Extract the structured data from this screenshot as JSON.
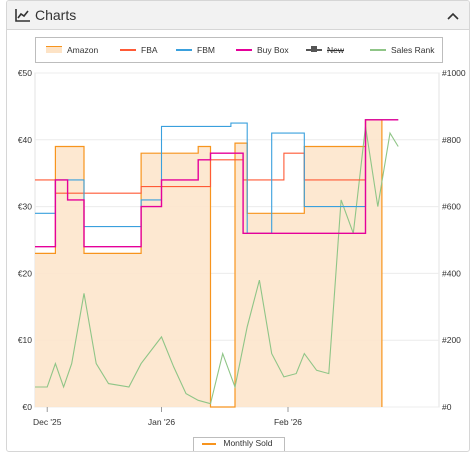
{
  "panel": {
    "title": "Charts",
    "title_icon": "line-chart-icon",
    "collapse_icon": "chevron-up-icon"
  },
  "legend": [
    {
      "name": "Amazon",
      "color": "#f7941d",
      "kind": "area"
    },
    {
      "name": "FBA",
      "color": "#ff5a36",
      "kind": "line"
    },
    {
      "name": "FBM",
      "color": "#3aa0dd",
      "kind": "line"
    },
    {
      "name": "Buy Box",
      "color": "#e5009a",
      "kind": "line"
    },
    {
      "name": "New",
      "color": "#555555",
      "kind": "marker",
      "hidden": true
    },
    {
      "name": "Sales Rank",
      "color": "#8fc587",
      "kind": "line"
    }
  ],
  "bottom_legend": {
    "label": "Monthly Sold",
    "color": "#f7941d"
  },
  "chart_data": {
    "type": "line",
    "x_unit": "date",
    "x_range": [
      "2025-12-01",
      "2026-03-10"
    ],
    "x_ticks": [
      {
        "date": "2025-12-04",
        "label": "Dec '25"
      },
      {
        "date": "2026-01-01",
        "label": "Jan '26"
      },
      {
        "date": "2026-02-01",
        "label": "Feb '26"
      }
    ],
    "y_left": {
      "ticks": [
        "€0",
        "€10",
        "€20",
        "€30",
        "€40",
        "€50"
      ],
      "values": [
        0,
        10,
        20,
        30,
        40,
        50
      ],
      "range": [
        0,
        50
      ]
    },
    "y_right": {
      "ticks": [
        "#0",
        "#200",
        "#400",
        "#600",
        "#800",
        "#1000"
      ],
      "values": [
        0,
        200,
        400,
        600,
        800,
        1000
      ],
      "range": [
        0,
        1000
      ]
    },
    "series": [
      {
        "name": "Amazon",
        "axis": "left",
        "kind": "area",
        "points": [
          [
            "2025-12-01",
            23
          ],
          [
            "2025-12-06",
            23
          ],
          [
            "2025-12-06",
            39
          ],
          [
            "2025-12-13",
            39
          ],
          [
            "2025-12-13",
            23
          ],
          [
            "2025-12-27",
            23
          ],
          [
            "2025-12-27",
            38
          ],
          [
            "2026-01-10",
            38
          ],
          [
            "2026-01-10",
            39
          ],
          [
            "2026-01-13",
            39
          ],
          [
            "2026-01-13",
            0
          ],
          [
            "2026-01-19",
            0
          ],
          [
            "2026-01-19",
            39.5
          ],
          [
            "2026-01-22",
            39.5
          ],
          [
            "2026-01-22",
            29
          ],
          [
            "2026-02-05",
            29
          ],
          [
            "2026-02-05",
            39
          ],
          [
            "2026-02-20",
            39
          ],
          [
            "2026-02-20",
            43
          ],
          [
            "2026-02-24",
            43
          ],
          [
            "2026-02-24",
            0
          ]
        ]
      },
      {
        "name": "FBA",
        "axis": "left",
        "kind": "line",
        "points": [
          [
            "2025-12-01",
            34
          ],
          [
            "2025-12-06",
            34
          ],
          [
            "2025-12-06",
            32
          ],
          [
            "2025-12-27",
            32
          ],
          [
            "2025-12-27",
            33
          ],
          [
            "2026-01-13",
            33
          ],
          [
            "2026-01-13",
            37
          ],
          [
            "2026-01-21",
            37
          ],
          [
            "2026-01-21",
            34
          ],
          [
            "2026-01-31",
            34
          ],
          [
            "2026-01-31",
            38
          ],
          [
            "2026-02-05",
            38
          ],
          [
            "2026-02-05",
            34
          ],
          [
            "2026-02-20",
            34
          ],
          [
            "2026-02-20",
            43
          ],
          [
            "2026-02-28",
            43
          ]
        ]
      },
      {
        "name": "FBM",
        "axis": "left",
        "kind": "line",
        "points": [
          [
            "2025-12-01",
            29
          ],
          [
            "2025-12-06",
            29
          ],
          [
            "2025-12-06",
            34
          ],
          [
            "2025-12-13",
            34
          ],
          [
            "2025-12-13",
            27
          ],
          [
            "2025-12-27",
            27
          ],
          [
            "2025-12-27",
            31
          ],
          [
            "2026-01-01",
            31
          ],
          [
            "2026-01-01",
            42
          ],
          [
            "2026-01-18",
            42
          ],
          [
            "2026-01-18",
            42.5
          ],
          [
            "2026-01-22",
            42.5
          ],
          [
            "2026-01-22",
            26
          ],
          [
            "2026-01-28",
            26
          ],
          [
            "2026-01-28",
            41
          ],
          [
            "2026-02-05",
            41
          ],
          [
            "2026-02-05",
            30
          ],
          [
            "2026-02-20",
            30
          ],
          [
            "2026-02-20",
            43
          ],
          [
            "2026-02-28",
            43
          ]
        ]
      },
      {
        "name": "Buy Box",
        "axis": "left",
        "kind": "line",
        "points": [
          [
            "2025-12-01",
            24
          ],
          [
            "2025-12-06",
            24
          ],
          [
            "2025-12-06",
            34
          ],
          [
            "2025-12-09",
            34
          ],
          [
            "2025-12-09",
            31
          ],
          [
            "2025-12-13",
            31
          ],
          [
            "2025-12-13",
            24
          ],
          [
            "2025-12-27",
            24
          ],
          [
            "2025-12-27",
            30
          ],
          [
            "2026-01-01",
            30
          ],
          [
            "2026-01-01",
            34
          ],
          [
            "2026-01-10",
            34
          ],
          [
            "2026-01-10",
            37
          ],
          [
            "2026-01-13",
            37
          ],
          [
            "2026-01-13",
            38
          ],
          [
            "2026-01-21",
            38
          ],
          [
            "2026-01-21",
            26
          ],
          [
            "2026-02-05",
            26
          ],
          [
            "2026-02-05",
            26
          ],
          [
            "2026-02-20",
            26
          ],
          [
            "2026-02-20",
            43
          ],
          [
            "2026-02-28",
            43
          ]
        ]
      },
      {
        "name": "Sales Rank",
        "axis": "right",
        "kind": "line",
        "points": [
          [
            "2025-12-01",
            60
          ],
          [
            "2025-12-04",
            60
          ],
          [
            "2025-12-06",
            130
          ],
          [
            "2025-12-08",
            60
          ],
          [
            "2025-12-10",
            130
          ],
          [
            "2025-12-13",
            340
          ],
          [
            "2025-12-16",
            130
          ],
          [
            "2025-12-19",
            70
          ],
          [
            "2025-12-24",
            60
          ],
          [
            "2025-12-27",
            130
          ],
          [
            "2026-01-01",
            210
          ],
          [
            "2026-01-04",
            120
          ],
          [
            "2026-01-07",
            40
          ],
          [
            "2026-01-10",
            20
          ],
          [
            "2026-01-13",
            10
          ],
          [
            "2026-01-16",
            160
          ],
          [
            "2026-01-19",
            60
          ],
          [
            "2026-01-22",
            240
          ],
          [
            "2026-01-25",
            380
          ],
          [
            "2026-01-28",
            160
          ],
          [
            "2026-01-31",
            90
          ],
          [
            "2026-02-03",
            100
          ],
          [
            "2026-02-05",
            160
          ],
          [
            "2026-02-08",
            110
          ],
          [
            "2026-02-11",
            100
          ],
          [
            "2026-02-14",
            620
          ],
          [
            "2026-02-17",
            520
          ],
          [
            "2026-02-20",
            840
          ],
          [
            "2026-02-23",
            600
          ],
          [
            "2026-02-26",
            820
          ],
          [
            "2026-02-28",
            780
          ]
        ]
      }
    ]
  }
}
